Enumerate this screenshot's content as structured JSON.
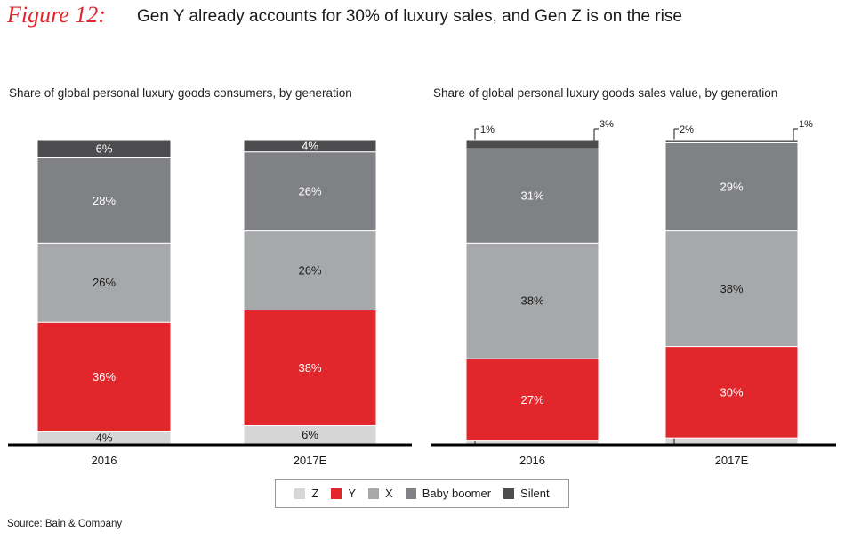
{
  "figure_label": "Figure 12:",
  "title": "Gen Y already accounts for 30% of luxury sales, and Gen Z is on the rise",
  "source": "Source: Bain & Company",
  "colors": {
    "Z": "#d6d6d7",
    "Y": "#e1262c",
    "X": "#a7a8aa",
    "Baby boomer": "#808184",
    "Silent": "#4d4d4f"
  },
  "legend": [
    "Z",
    "Y",
    "X",
    "Baby boomer",
    "Silent"
  ],
  "chart_data": [
    {
      "type": "bar",
      "stacked": true,
      "title": "Share of global personal luxury goods consumers, by generation",
      "categories": [
        "2016",
        "2017E"
      ],
      "ylim": [
        0,
        100
      ],
      "series": [
        {
          "name": "Z",
          "values": [
            4,
            6
          ],
          "labels": [
            "4%",
            "6%"
          ]
        },
        {
          "name": "Y",
          "values": [
            36,
            38
          ],
          "labels": [
            "36%",
            "38%"
          ]
        },
        {
          "name": "X",
          "values": [
            26,
            26
          ],
          "labels": [
            "26%",
            "26%"
          ]
        },
        {
          "name": "Baby boomer",
          "values": [
            28,
            26
          ],
          "labels": [
            "28%",
            "26%"
          ]
        },
        {
          "name": "Silent",
          "values": [
            6,
            4
          ],
          "labels": [
            "6%",
            "4%"
          ]
        }
      ]
    },
    {
      "type": "bar",
      "stacked": true,
      "title": "Share of global personal luxury goods sales value, by generation",
      "categories": [
        "2016",
        "2017E"
      ],
      "ylim": [
        0,
        100
      ],
      "series": [
        {
          "name": "Z",
          "values": [
            1,
            2
          ],
          "labels": [
            "1%",
            "2%"
          ]
        },
        {
          "name": "Y",
          "values": [
            27,
            30
          ],
          "labels": [
            "27%",
            "30%"
          ]
        },
        {
          "name": "X",
          "values": [
            38,
            38
          ],
          "labels": [
            "38%",
            "38%"
          ]
        },
        {
          "name": "Baby boomer",
          "values": [
            31,
            29
          ],
          "labels": [
            "31%",
            "29%"
          ]
        },
        {
          "name": "Silent",
          "values": [
            3,
            1
          ],
          "labels": [
            "3%",
            "1%"
          ]
        }
      ]
    }
  ]
}
